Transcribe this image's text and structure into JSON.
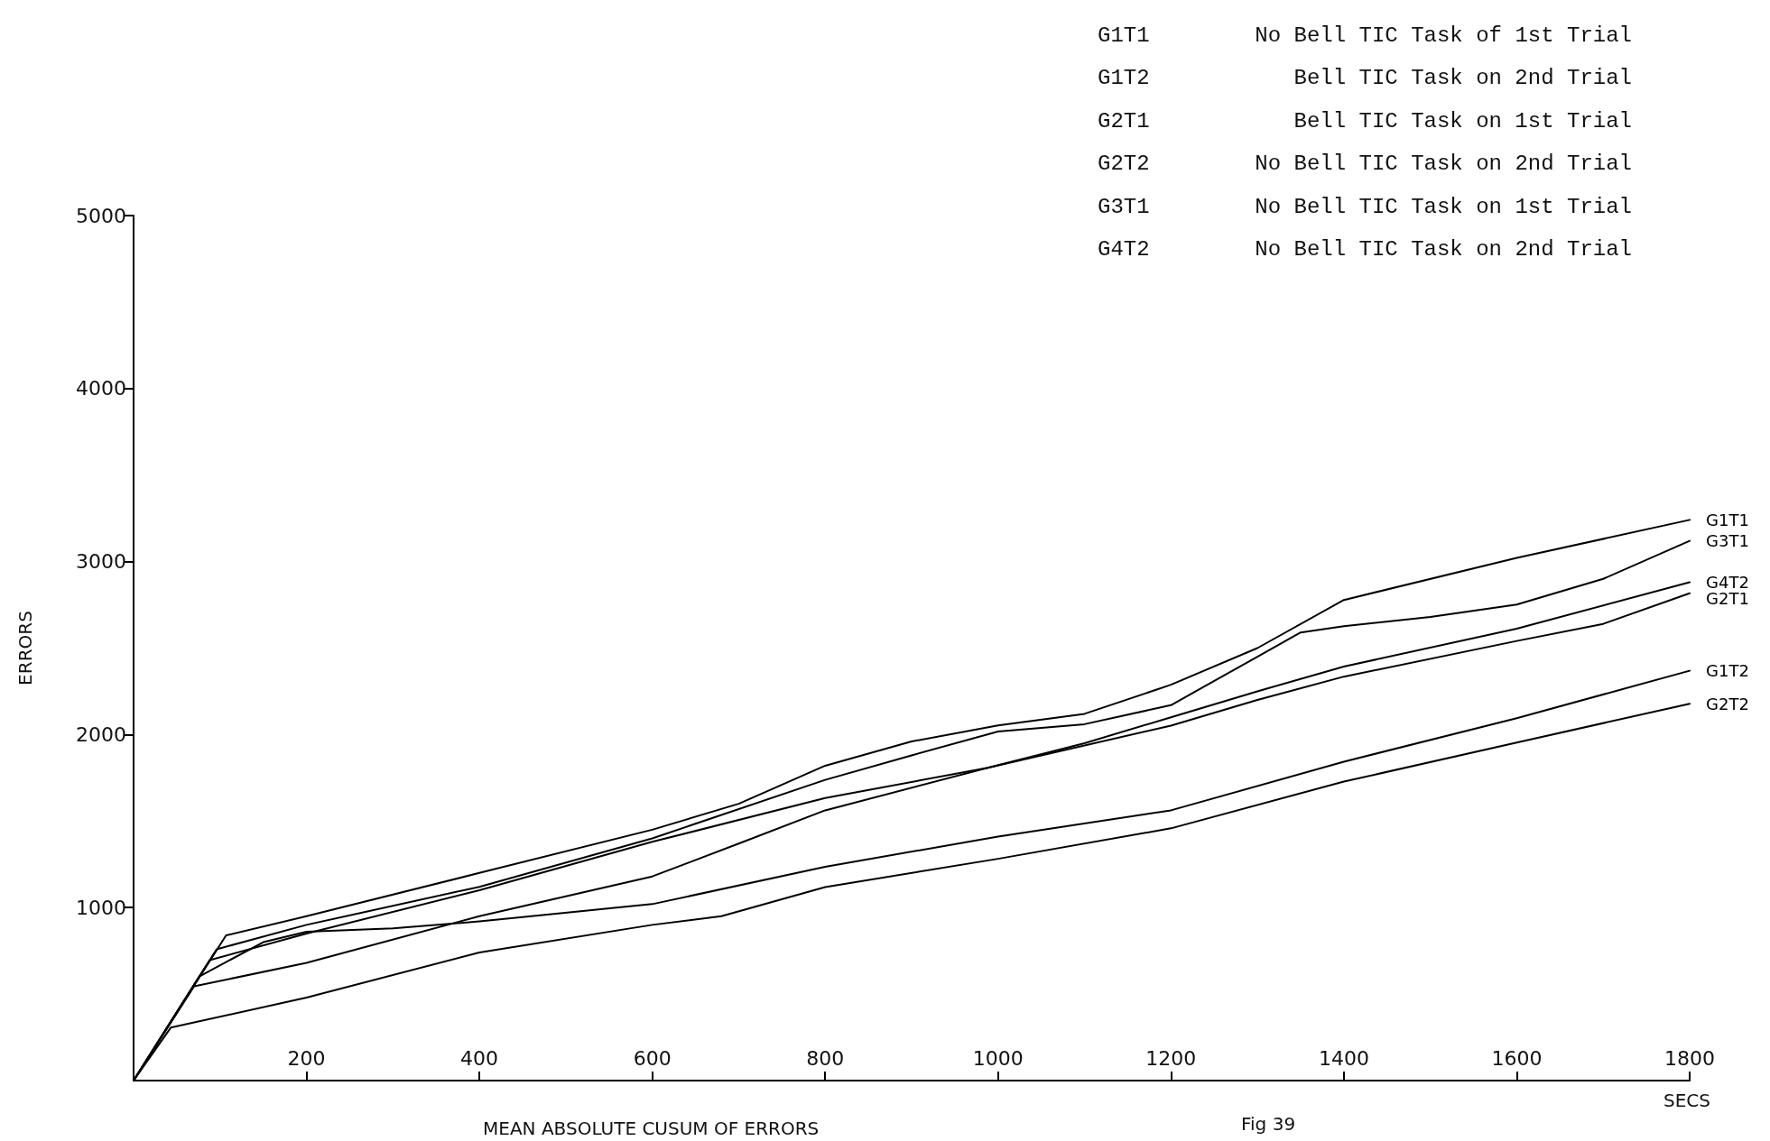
{
  "chart_data": {
    "type": "line",
    "title": "MEAN ABSOLUTE CUSUM OF ERRORS",
    "xlabel": "SECS",
    "ylabel": "ERRORS",
    "annotations": [
      "G1T1",
      "No Bell TIC Task of 1st Trial",
      "G1T2",
      "Bell TIC Task on 2nd Trial",
      "G2T1",
      "Bell TIC Task on 1st Trial",
      "G2T2",
      "No Bell TIC Task on 2nd Trial",
      "G3T1",
      "No Bell TIC Task on 1st Trial",
      "G4T2",
      "No Bell TIC Task on 2nd Trial",
      "Fig 39"
    ],
    "xlim": [
      0,
      1800
    ],
    "xticks": [
      200,
      400,
      600,
      800,
      1000,
      1200,
      1400,
      1600,
      1800
    ],
    "ylim": [
      0,
      5000
    ],
    "yticks": [
      1000,
      2000,
      3000,
      4000,
      5000
    ],
    "grid": false,
    "legend": false,
    "marker": "none",
    "line_style": "solid",
    "series": [
      {
        "name": "G1T1",
        "color": "#000000",
        "x": [
          0,
          107,
          200,
          400,
          600,
          700,
          800,
          900,
          1000,
          1100,
          1200,
          1300,
          1400,
          1600,
          1800
        ],
        "values": [
          0,
          839,
          950,
          1200,
          1450,
          1600,
          1820,
          1960,
          2053,
          2120,
          2288,
          2500,
          2778,
          3021,
          3241
        ]
      },
      {
        "name": "G3T1",
        "color": "#000000",
        "x": [
          0,
          96,
          200,
          400,
          600,
          800,
          900,
          1000,
          1100,
          1200,
          1300,
          1350,
          1400,
          1500,
          1600,
          1700,
          1800
        ],
        "values": [
          0,
          759,
          900,
          1120,
          1400,
          1738,
          1880,
          2018,
          2060,
          2170,
          2450,
          2590,
          2626,
          2680,
          2752,
          2900,
          3120
        ]
      },
      {
        "name": "G4T2",
        "color": "#000000",
        "x": [
          0,
          70,
          200,
          400,
          600,
          700,
          800,
          988,
          1100,
          1200,
          1300,
          1400,
          1600,
          1800
        ],
        "values": [
          0,
          545,
          680,
          950,
          1180,
          1370,
          1562,
          1808,
          1950,
          2100,
          2250,
          2393,
          2612,
          2881
        ]
      },
      {
        "name": "G2T1",
        "color": "#000000",
        "x": [
          0,
          88,
          200,
          400,
          600,
          800,
          988,
          1200,
          1300,
          1400,
          1600,
          1700,
          1800
        ],
        "values": [
          0,
          696,
          850,
          1100,
          1380,
          1633,
          1808,
          2052,
          2200,
          2335,
          2541,
          2640,
          2817
        ]
      },
      {
        "name": "G1T2",
        "color": "#000000",
        "x": [
          0,
          76,
          150,
          200,
          300,
          400,
          600,
          800,
          1000,
          1200,
          1400,
          1600,
          1800
        ],
        "values": [
          0,
          602,
          800,
          860,
          880,
          920,
          1020,
          1236,
          1410,
          1562,
          1843,
          2095,
          2369
        ]
      },
      {
        "name": "G2T2",
        "color": "#000000",
        "x": [
          0,
          43,
          200,
          400,
          600,
          680,
          800,
          1000,
          1200,
          1400,
          1600,
          1800
        ],
        "values": [
          0,
          306,
          480,
          740,
          900,
          950,
          1118,
          1282,
          1458,
          1728,
          1954,
          2178
        ]
      }
    ]
  }
}
